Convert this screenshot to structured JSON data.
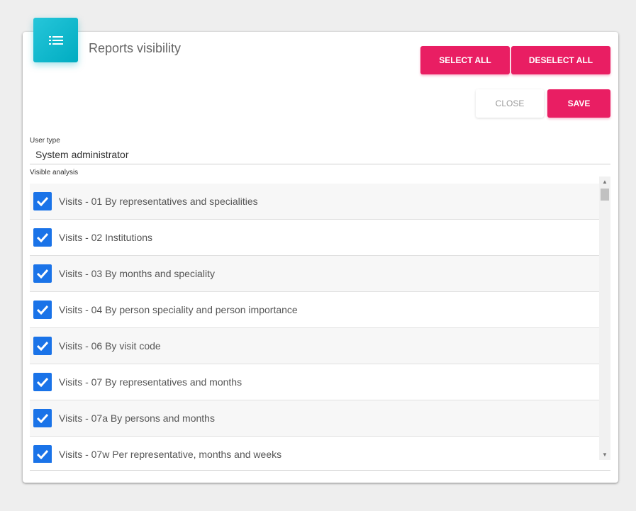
{
  "header": {
    "title": "Reports visibility",
    "icon": "list-icon",
    "accent": "#00acc1"
  },
  "toolbar": {
    "select_all": "SELECT ALL",
    "deselect_all": "DESELECT ALL",
    "close": "CLOSE",
    "save": "SAVE",
    "button_color": "#e91e63"
  },
  "form": {
    "user_type_label": "User type",
    "user_type_value": "System administrator",
    "visible_analysis_label": "Visible analysis"
  },
  "items": [
    {
      "label": "Visits - 01 By representatives and specialities",
      "checked": true
    },
    {
      "label": "Visits - 02 Institutions",
      "checked": true
    },
    {
      "label": "Visits - 03 By months and speciality",
      "checked": true
    },
    {
      "label": "Visits - 04 By person speciality and person importance",
      "checked": true
    },
    {
      "label": "Visits - 06 By visit code",
      "checked": true
    },
    {
      "label": "Visits - 07 By representatives and months",
      "checked": true
    },
    {
      "label": "Visits - 07a By persons and months",
      "checked": true
    },
    {
      "label": "Visits - 07w Per representative, months and weeks",
      "checked": true
    }
  ]
}
